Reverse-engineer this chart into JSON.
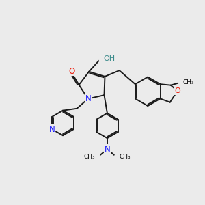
{
  "background_color": "#ebebeb",
  "bond_color": "#1a1a1a",
  "bond_width": 1.4,
  "atom_colors": {
    "N": "#1a1aff",
    "O": "#ee1100",
    "OH": "#3a8a8a"
  },
  "figsize": [
    3.0,
    3.0
  ],
  "dpi": 100,
  "xlim": [
    0,
    10
  ],
  "ylim": [
    0,
    10
  ]
}
